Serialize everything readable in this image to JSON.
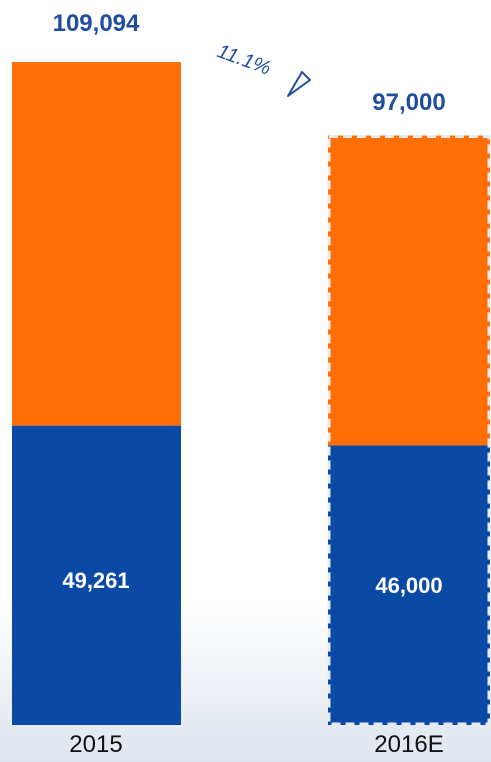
{
  "chart_data": {
    "type": "bar",
    "stacked": true,
    "categories": [
      "2015",
      "2016E"
    ],
    "series": [
      {
        "values": [
          49261,
          46000
        ],
        "color": "#0a4aa6"
      },
      {
        "values": [
          59833,
          51000
        ],
        "color": "#ff6f06"
      }
    ],
    "totals": [
      "109,094",
      "97,000"
    ],
    "segment_labels": [
      "49,261",
      "46,000"
    ],
    "growth_annotation": "11.1%",
    "estimate_category": "2016E",
    "ylim": [
      0,
      109094
    ],
    "grid": false,
    "legend": "none",
    "title": "",
    "xlabel": "",
    "ylabel": ""
  },
  "colors": {
    "total_label": "#1f4e9c",
    "estimate_border": "#e6ebf2"
  }
}
